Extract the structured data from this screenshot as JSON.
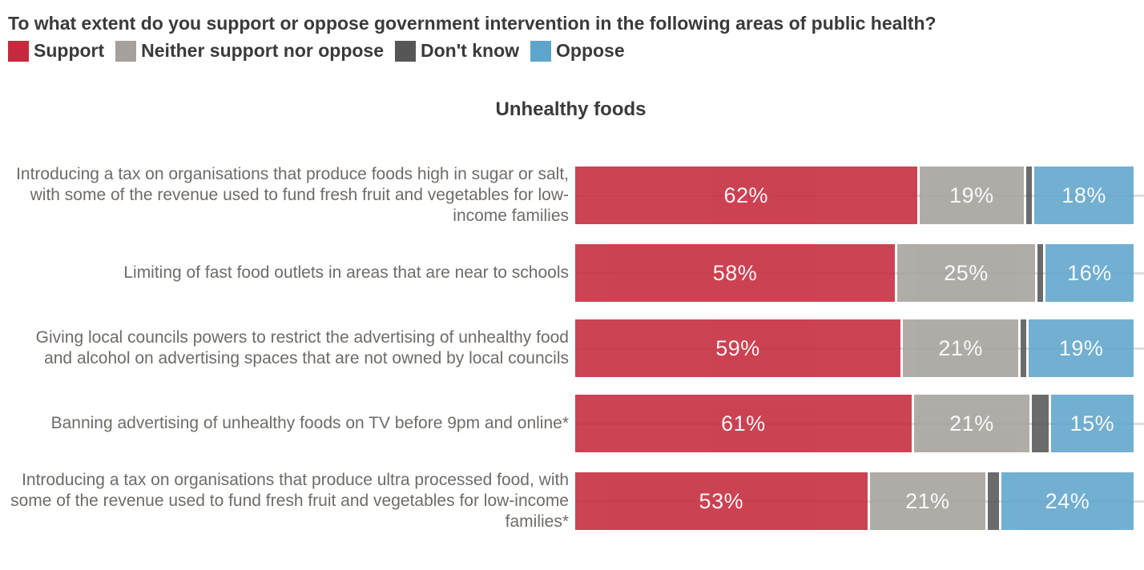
{
  "header": {
    "question": "To what extent do you support or oppose government intervention in the following areas of public health?"
  },
  "legend": [
    {
      "name": "support",
      "label": "Support",
      "color": "#c5293b"
    },
    {
      "name": "neither",
      "label": "Neither support nor oppose",
      "color": "#a5a09b"
    },
    {
      "name": "dont-know",
      "label": "Don't know",
      "color": "#565656"
    },
    {
      "name": "oppose",
      "label": "Oppose",
      "color": "#5fa5cb"
    }
  ],
  "chart_data": {
    "type": "bar",
    "orientation": "horizontal",
    "stacked": true,
    "title": "Unhealthy foods",
    "xlim": [
      0,
      100
    ],
    "grid": "faint horizontal line at each row midline",
    "legend_position": "top-left",
    "categories": [
      "Introducing a tax on organisations that produce foods high in sugar or salt, with some of the revenue used to fund fresh fruit and vegetables for low-income families",
      "Limiting of fast food outlets in areas that are near to schools",
      "Giving local councils powers to restrict the advertising of unhealthy food and alcohol on advertising spaces that are not owned by local councils",
      "Banning advertising of unhealthy foods on TV before 9pm and online*",
      "Introducing a tax on organisations that produce ultra processed food, with some of the revenue used to fund fresh fruit and vegetables for low-income families*"
    ],
    "series": [
      {
        "name": "Support",
        "color": "#c5293b",
        "values": [
          62,
          58,
          59,
          61,
          53
        ],
        "labels": [
          "62%",
          "58%",
          "59%",
          "61%",
          "53%"
        ]
      },
      {
        "name": "Neither support nor oppose",
        "color": "#a5a09b",
        "values": [
          19,
          25,
          21,
          21,
          21
        ],
        "labels": [
          "19%",
          "25%",
          "21%",
          "21%",
          "21%"
        ]
      },
      {
        "name": "Don't know",
        "color": "#565656",
        "values": [
          1,
          1,
          1,
          3,
          2
        ],
        "labels": [
          "",
          "",
          "",
          "",
          ""
        ]
      },
      {
        "name": "Oppose",
        "color": "#5fa5cb",
        "values": [
          18,
          16,
          19,
          15,
          24
        ],
        "labels": [
          "18%",
          "16%",
          "19%",
          "15%",
          "24%"
        ]
      }
    ]
  }
}
